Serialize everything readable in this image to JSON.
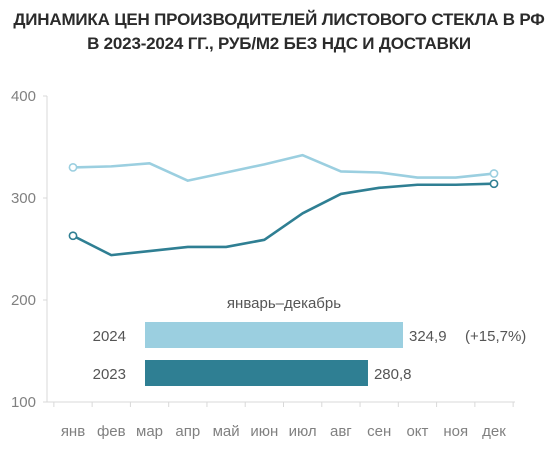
{
  "title_line1": "ДИНАМИКА ЦЕН ПРОИЗВОДИТЕЛЕЙ ЛИСТОВОГО СТЕКЛА В РФ",
  "title_line2": "В 2023-2024  ГГ., РУБ/М2 БЕЗ НДС И ДОСТАВКИ",
  "colors": {
    "series_2024": "#9bcfe0",
    "series_2023": "#2f7f93"
  },
  "chart_data": {
    "type": "line",
    "categories": [
      "янв",
      "фев",
      "мар",
      "апр",
      "май",
      "июн",
      "июл",
      "авг",
      "сен",
      "окт",
      "ноя",
      "дек"
    ],
    "yticks": [
      100,
      200,
      300,
      400
    ],
    "ylim": [
      100,
      400
    ],
    "grid": false,
    "series": [
      {
        "name": "2024",
        "values": [
          330,
          331,
          334,
          317,
          325,
          333,
          342,
          326,
          325,
          320,
          320,
          324
        ]
      },
      {
        "name": "2023",
        "values": [
          263,
          244,
          248,
          252,
          252,
          259,
          285,
          304,
          310,
          313,
          313,
          314
        ]
      }
    ],
    "inset": {
      "type": "bar",
      "title": "январь–декабрь",
      "bars": [
        {
          "label": "2024",
          "value": 324.9,
          "value_label": "324,9",
          "change_label": "(+15,7%)"
        },
        {
          "label": "2023",
          "value": 280.8,
          "value_label": "280,8",
          "change_label": ""
        }
      ]
    }
  }
}
